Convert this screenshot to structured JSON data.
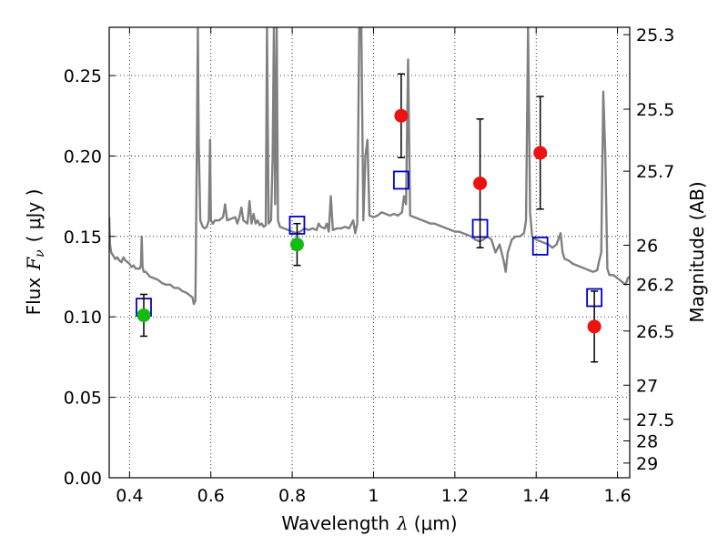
{
  "chart_data": {
    "type": "scatter",
    "xlabel": "Wavelength",
    "xlabel_symbol": "λ",
    "xlabel_units": "(μm)",
    "ylabel": "Flux",
    "ylabel_symbol": "F",
    "ylabel_sub": "ν",
    "ylabel_units": "( μJy )",
    "y2label": "Magnitude (AB)",
    "xlim": [
      0.35,
      1.63
    ],
    "ylim": [
      0.0,
      0.28
    ],
    "grid": true,
    "x_ticks": [
      {
        "value": 0.4,
        "label": "0.4"
      },
      {
        "value": 0.6,
        "label": "0.6"
      },
      {
        "value": 0.8,
        "label": "0.8"
      },
      {
        "value": 1.0,
        "label": "1"
      },
      {
        "value": 1.2,
        "label": "1.2"
      },
      {
        "value": 1.4,
        "label": "1.4"
      },
      {
        "value": 1.6,
        "label": "1.6"
      }
    ],
    "y_ticks": [
      {
        "value": 0.0,
        "label": "0.00"
      },
      {
        "value": 0.05,
        "label": "0.05"
      },
      {
        "value": 0.1,
        "label": "0.10"
      },
      {
        "value": 0.15,
        "label": "0.15"
      },
      {
        "value": 0.2,
        "label": "0.20"
      },
      {
        "value": 0.25,
        "label": "0.25"
      }
    ],
    "mag_ticks": [
      {
        "value": 25.3,
        "label": "25.3"
      },
      {
        "value": 25.5,
        "label": "25.5"
      },
      {
        "value": 25.7,
        "label": "25.7"
      },
      {
        "value": 26.0,
        "label": "26"
      },
      {
        "value": 26.2,
        "label": "26.2"
      },
      {
        "value": 26.5,
        "label": "26.5"
      },
      {
        "value": 27.0,
        "label": "27"
      },
      {
        "value": 27.5,
        "label": "27.5"
      },
      {
        "value": 28.0,
        "label": "28"
      },
      {
        "value": 29.0,
        "label": "29"
      }
    ],
    "series": [
      {
        "name": "model spectrum",
        "kind": "line",
        "color": "#808080",
        "points": [
          [
            0.35,
            0.162
          ],
          [
            0.352,
            0.145
          ],
          [
            0.355,
            0.14
          ],
          [
            0.36,
            0.138
          ],
          [
            0.365,
            0.136
          ],
          [
            0.37,
            0.137
          ],
          [
            0.375,
            0.135
          ],
          [
            0.38,
            0.134
          ],
          [
            0.385,
            0.137
          ],
          [
            0.39,
            0.135
          ],
          [
            0.395,
            0.134
          ],
          [
            0.4,
            0.133
          ],
          [
            0.405,
            0.131
          ],
          [
            0.41,
            0.132
          ],
          [
            0.415,
            0.13
          ],
          [
            0.42,
            0.13
          ],
          [
            0.425,
            0.13
          ],
          [
            0.428,
            0.132
          ],
          [
            0.43,
            0.15
          ],
          [
            0.432,
            0.131
          ],
          [
            0.435,
            0.128
          ],
          [
            0.44,
            0.128
          ],
          [
            0.45,
            0.125
          ],
          [
            0.46,
            0.124
          ],
          [
            0.47,
            0.123
          ],
          [
            0.48,
            0.121
          ],
          [
            0.49,
            0.12
          ],
          [
            0.5,
            0.12
          ],
          [
            0.51,
            0.118
          ],
          [
            0.52,
            0.118
          ],
          [
            0.53,
            0.116
          ],
          [
            0.54,
            0.115
          ],
          [
            0.55,
            0.113
          ],
          [
            0.555,
            0.112
          ],
          [
            0.558,
            0.108
          ],
          [
            0.562,
            0.11
          ],
          [
            0.565,
            0.19
          ],
          [
            0.568,
            0.28
          ],
          [
            0.57,
            0.21
          ],
          [
            0.574,
            0.16
          ],
          [
            0.58,
            0.156
          ],
          [
            0.585,
            0.155
          ],
          [
            0.59,
            0.156
          ],
          [
            0.595,
            0.16
          ],
          [
            0.598,
            0.21
          ],
          [
            0.6,
            0.16
          ],
          [
            0.605,
            0.158
          ],
          [
            0.61,
            0.16
          ],
          [
            0.62,
            0.16
          ],
          [
            0.63,
            0.162
          ],
          [
            0.635,
            0.17
          ],
          [
            0.64,
            0.16
          ],
          [
            0.65,
            0.161
          ],
          [
            0.66,
            0.162
          ],
          [
            0.665,
            0.158
          ],
          [
            0.67,
            0.162
          ],
          [
            0.675,
            0.168
          ],
          [
            0.68,
            0.16
          ],
          [
            0.69,
            0.158
          ],
          [
            0.695,
            0.172
          ],
          [
            0.7,
            0.158
          ],
          [
            0.705,
            0.164
          ],
          [
            0.71,
            0.158
          ],
          [
            0.715,
            0.16
          ],
          [
            0.72,
            0.157
          ],
          [
            0.725,
            0.158
          ],
          [
            0.73,
            0.156
          ],
          [
            0.735,
            0.157
          ],
          [
            0.738,
            0.28
          ],
          [
            0.742,
            0.158
          ],
          [
            0.748,
            0.16
          ],
          [
            0.752,
            0.2
          ],
          [
            0.755,
            0.28
          ],
          [
            0.758,
            0.17
          ],
          [
            0.762,
            0.28
          ],
          [
            0.765,
            0.16
          ],
          [
            0.77,
            0.156
          ],
          [
            0.78,
            0.155
          ],
          [
            0.79,
            0.154
          ],
          [
            0.8,
            0.153
          ],
          [
            0.81,
            0.152
          ],
          [
            0.82,
            0.153
          ],
          [
            0.83,
            0.155
          ],
          [
            0.84,
            0.154
          ],
          [
            0.85,
            0.155
          ],
          [
            0.86,
            0.154
          ],
          [
            0.865,
            0.158
          ],
          [
            0.87,
            0.156
          ],
          [
            0.88,
            0.155
          ],
          [
            0.885,
            0.158
          ],
          [
            0.89,
            0.153
          ],
          [
            0.895,
            0.175
          ],
          [
            0.9,
            0.154
          ],
          [
            0.91,
            0.155
          ],
          [
            0.92,
            0.155
          ],
          [
            0.93,
            0.156
          ],
          [
            0.94,
            0.155
          ],
          [
            0.95,
            0.16
          ],
          [
            0.955,
            0.152
          ],
          [
            0.96,
            0.158
          ],
          [
            0.965,
            0.28
          ],
          [
            0.97,
            0.28
          ],
          [
            0.975,
            0.16
          ],
          [
            0.98,
            0.2
          ],
          [
            0.985,
            0.21
          ],
          [
            0.99,
            0.163
          ],
          [
            1.0,
            0.162
          ],
          [
            1.01,
            0.163
          ],
          [
            1.02,
            0.165
          ],
          [
            1.03,
            0.164
          ],
          [
            1.04,
            0.163
          ],
          [
            1.05,
            0.164
          ],
          [
            1.06,
            0.163
          ],
          [
            1.07,
            0.165
          ],
          [
            1.075,
            0.175
          ],
          [
            1.08,
            0.17
          ],
          [
            1.085,
            0.26
          ],
          [
            1.09,
            0.163
          ],
          [
            1.1,
            0.162
          ],
          [
            1.11,
            0.161
          ],
          [
            1.12,
            0.16
          ],
          [
            1.13,
            0.159
          ],
          [
            1.14,
            0.158
          ],
          [
            1.15,
            0.158
          ],
          [
            1.16,
            0.157
          ],
          [
            1.17,
            0.156
          ],
          [
            1.18,
            0.155
          ],
          [
            1.19,
            0.154
          ],
          [
            1.2,
            0.153
          ],
          [
            1.21,
            0.153
          ],
          [
            1.22,
            0.152
          ],
          [
            1.23,
            0.151
          ],
          [
            1.24,
            0.15
          ],
          [
            1.25,
            0.148
          ],
          [
            1.26,
            0.147
          ],
          [
            1.27,
            0.148
          ],
          [
            1.28,
            0.15
          ],
          [
            1.29,
            0.148
          ],
          [
            1.3,
            0.14
          ],
          [
            1.31,
            0.145
          ],
          [
            1.32,
            0.135
          ],
          [
            1.325,
            0.128
          ],
          [
            1.33,
            0.14
          ],
          [
            1.34,
            0.148
          ],
          [
            1.35,
            0.15
          ],
          [
            1.36,
            0.15
          ],
          [
            1.37,
            0.152
          ],
          [
            1.375,
            0.16
          ],
          [
            1.38,
            0.28
          ],
          [
            1.385,
            0.165
          ],
          [
            1.39,
            0.15
          ],
          [
            1.4,
            0.148
          ],
          [
            1.41,
            0.147
          ],
          [
            1.42,
            0.146
          ],
          [
            1.43,
            0.145
          ],
          [
            1.44,
            0.143
          ],
          [
            1.45,
            0.145
          ],
          [
            1.46,
            0.152
          ],
          [
            1.465,
            0.14
          ],
          [
            1.47,
            0.136
          ],
          [
            1.48,
            0.135
          ],
          [
            1.49,
            0.133
          ],
          [
            1.5,
            0.132
          ],
          [
            1.51,
            0.131
          ],
          [
            1.52,
            0.13
          ],
          [
            1.53,
            0.129
          ],
          [
            1.54,
            0.128
          ],
          [
            1.55,
            0.129
          ],
          [
            1.555,
            0.135
          ],
          [
            1.56,
            0.14
          ],
          [
            1.565,
            0.24
          ],
          [
            1.57,
            0.2
          ],
          [
            1.575,
            0.13
          ],
          [
            1.58,
            0.126
          ],
          [
            1.59,
            0.126
          ],
          [
            1.6,
            0.124
          ],
          [
            1.61,
            0.122
          ],
          [
            1.62,
            0.12
          ],
          [
            1.625,
            0.124
          ],
          [
            1.63,
            0.125
          ]
        ]
      },
      {
        "name": "model photometry",
        "kind": "open-square",
        "color": "#0000cc",
        "points": [
          [
            0.435,
            0.106
          ],
          [
            0.812,
            0.157
          ],
          [
            1.068,
            0.185
          ],
          [
            1.262,
            0.155
          ],
          [
            1.41,
            0.144
          ],
          [
            1.543,
            0.112
          ]
        ]
      },
      {
        "name": "observed (green)",
        "kind": "filled-circle",
        "color": "#11bb11",
        "points": [
          {
            "x": 0.435,
            "y": 0.101,
            "err": 0.013
          },
          {
            "x": 0.812,
            "y": 0.145,
            "err": 0.013
          }
        ]
      },
      {
        "name": "observed (red)",
        "kind": "filled-circle",
        "color": "#ee1111",
        "points": [
          {
            "x": 1.068,
            "y": 0.225,
            "err": 0.026
          },
          {
            "x": 1.262,
            "y": 0.183,
            "err": 0.04
          },
          {
            "x": 1.41,
            "y": 0.202,
            "err": 0.035
          },
          {
            "x": 1.543,
            "y": 0.094,
            "err": 0.022
          }
        ]
      }
    ]
  }
}
